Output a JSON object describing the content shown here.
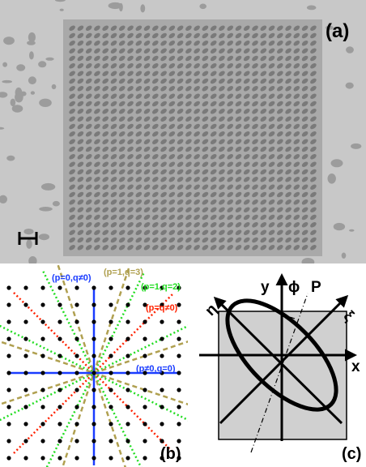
{
  "panel_a": {
    "label": "(a)",
    "colors": {
      "background": "#c7c7c7",
      "array_dark": "#7a7a7a",
      "speckle": "#9c9c9c"
    },
    "array_rows": 30,
    "array_cols": 30,
    "scale_bar_icon": "scale-bar-icon"
  },
  "panel_b": {
    "label": "(b)",
    "annotations": [
      {
        "text": "(p=0,q≠0)",
        "color": "#1a3cff"
      },
      {
        "text": "(p=1,q=3)",
        "color": "#b0a050"
      },
      {
        "text": "(p=1,q=2)",
        "color": "#22dd22"
      },
      {
        "text": "(p=q≠0)",
        "color": "#ff2200"
      },
      {
        "text": "(p≠0,q=0)",
        "color": "#1a3cff"
      }
    ],
    "lattice_half_extent": 5
  },
  "panel_c": {
    "label": "(c)",
    "axis_labels": {
      "y": "y",
      "x": "x",
      "phi": "ϕ",
      "p": "P",
      "eta": "η",
      "xi": "ξ"
    },
    "colors": {
      "square_fill": "#d0d0d0"
    }
  }
}
